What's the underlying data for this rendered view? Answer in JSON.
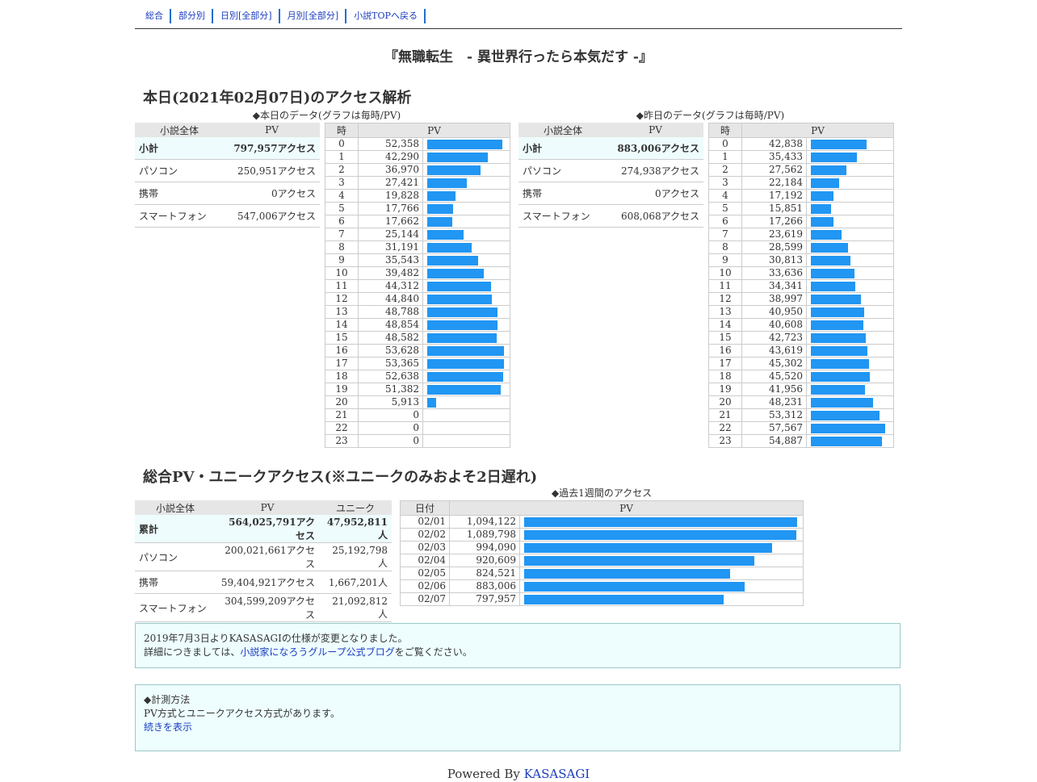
{
  "nav": [
    "総合",
    "部分別",
    "日別[全部分]",
    "月別[全部分]",
    "小説TOPへ戻る"
  ],
  "novel_title": "『無職転生　- 異世界行ったら本気だす -』",
  "today": {
    "heading": "本日(2021年02月07日)のアクセス解析",
    "today_caption": "◆本日のデータ(グラフは毎時/PV)",
    "yesterday_caption": "◆昨日のデータ(グラフは毎時/PV)",
    "summary_header": [
      "小説全体",
      "PV"
    ],
    "today_summary": [
      {
        "label": "小計",
        "value": "797,957アクセス"
      },
      {
        "label": "パソコン",
        "value": "250,951アクセス"
      },
      {
        "label": "携帯",
        "value": "0アクセス"
      },
      {
        "label": "スマートフォン",
        "value": "547,006アクセス"
      }
    ],
    "yesterday_summary": [
      {
        "label": "小計",
        "value": "883,006アクセス"
      },
      {
        "label": "パソコン",
        "value": "274,938アクセス"
      },
      {
        "label": "携帯",
        "value": "0アクセス"
      },
      {
        "label": "スマートフォン",
        "value": "608,068アクセス"
      }
    ],
    "hourly_header": [
      "時",
      "PV"
    ]
  },
  "chart_data": [
    {
      "type": "bar",
      "title": "◆本日のデータ(グラフは毎時/PV)",
      "categories": [
        "0",
        "1",
        "2",
        "3",
        "4",
        "5",
        "6",
        "7",
        "8",
        "9",
        "10",
        "11",
        "12",
        "13",
        "14",
        "15",
        "16",
        "17",
        "18",
        "19",
        "20",
        "21",
        "22",
        "23"
      ],
      "values": [
        52358,
        42290,
        36970,
        27421,
        19828,
        17766,
        17662,
        25144,
        31191,
        35543,
        39482,
        44312,
        44840,
        48788,
        48854,
        48582,
        53628,
        53365,
        52638,
        51382,
        5913,
        0,
        0,
        0
      ],
      "labels": [
        "52,358",
        "42,290",
        "36,970",
        "27,421",
        "19,828",
        "17,766",
        "17,662",
        "25,144",
        "31,191",
        "35,543",
        "39,482",
        "44,312",
        "44,840",
        "48,788",
        "48,854",
        "48,582",
        "53,628",
        "53,365",
        "52,638",
        "51,382",
        "5,913",
        "0",
        "0",
        "0"
      ]
    },
    {
      "type": "bar",
      "title": "◆昨日のデータ(グラフは毎時/PV)",
      "categories": [
        "0",
        "1",
        "2",
        "3",
        "4",
        "5",
        "6",
        "7",
        "8",
        "9",
        "10",
        "11",
        "12",
        "13",
        "14",
        "15",
        "16",
        "17",
        "18",
        "19",
        "20",
        "21",
        "22",
        "23"
      ],
      "values": [
        42838,
        35433,
        27562,
        22184,
        17192,
        15851,
        17266,
        23619,
        28599,
        30813,
        33636,
        34341,
        38997,
        40950,
        40608,
        42723,
        43619,
        45302,
        45520,
        41956,
        48231,
        53312,
        57567,
        54887
      ],
      "labels": [
        "42,838",
        "35,433",
        "27,562",
        "22,184",
        "17,192",
        "15,851",
        "17,266",
        "23,619",
        "28,599",
        "30,813",
        "33,636",
        "34,341",
        "38,997",
        "40,950",
        "40,608",
        "42,723",
        "43,619",
        "45,302",
        "45,520",
        "41,956",
        "48,231",
        "53,312",
        "57,567",
        "54,887"
      ]
    },
    {
      "type": "bar",
      "title": "◆過去1週間のアクセス",
      "categories": [
        "02/01",
        "02/02",
        "02/03",
        "02/04",
        "02/05",
        "02/06",
        "02/07"
      ],
      "values": [
        1094122,
        1089798,
        994090,
        920609,
        824521,
        883006,
        797957
      ],
      "labels": [
        "1,094,122",
        "1,089,798",
        "994,090",
        "920,609",
        "824,521",
        "883,006",
        "797,957"
      ]
    }
  ],
  "total": {
    "heading": "総合PV・ユニークアクセス(※ユニークのみおよそ2日遅れ)",
    "header": [
      "小説全体",
      "PV",
      "ユニーク"
    ],
    "rows": [
      {
        "label": "累計",
        "pv": "564,025,791アクセス",
        "unique": "47,952,811人"
      },
      {
        "label": "パソコン",
        "pv": "200,021,661アクセス",
        "unique": "25,192,798人"
      },
      {
        "label": "携帯",
        "pv": "59,404,921アクセス",
        "unique": "1,667,201人"
      },
      {
        "label": "スマートフォン",
        "pv": "304,599,209アクセス",
        "unique": "21,092,812人"
      }
    ],
    "week_caption": "◆過去1週間のアクセス",
    "week_header": [
      "日付",
      "PV"
    ]
  },
  "notice": {
    "line1": "2019年7月3日よりKASASAGIの仕様が変更となりました。",
    "line2_pre": "詳細につきましては、",
    "line2_link": "小説家になろうグループ公式ブログ",
    "line2_post": "をご覧ください。"
  },
  "method": {
    "title": "◆計測方法",
    "text": "PV方式とユニークアクセス方式があります。",
    "link": "続きを表示"
  },
  "footer": {
    "powered": "Powered By ",
    "brand": "KASASAGI"
  },
  "colors": {
    "bar": "#2196f3",
    "link": "#1a3bbf",
    "highlight_row": "#eefcfd",
    "box_bg": "#eefeff"
  }
}
